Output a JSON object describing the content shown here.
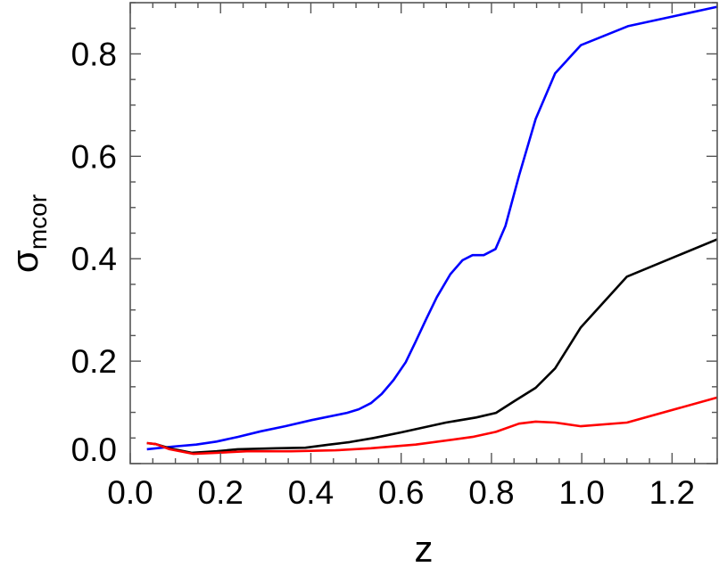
{
  "chart_data": {
    "type": "line",
    "title": "",
    "xlabel": "z",
    "ylabel": "σ",
    "ylabel_subscript": "mcor",
    "xlim": [
      0.0,
      1.3
    ],
    "ylim": [
      0.0,
      0.9
    ],
    "xticks": [
      0.0,
      0.2,
      0.4,
      0.6,
      0.8,
      1.0,
      1.2
    ],
    "xtick_labels": [
      "0.0",
      "0.2",
      "0.4",
      "0.6",
      "0.8",
      "1.0",
      "1.2"
    ],
    "yticks": [
      0.0,
      0.2,
      0.4,
      0.6,
      0.8
    ],
    "ytick_labels": [
      "0.0",
      "0.2",
      "0.4",
      "0.6",
      "0.8"
    ],
    "minor_tick_step": 0.05,
    "grid": false,
    "legend": "none",
    "series": [
      {
        "color": "#0000ff",
        "x": [
          0.037,
          0.093,
          0.146,
          0.191,
          0.238,
          0.289,
          0.343,
          0.402,
          0.48,
          0.506,
          0.533,
          0.557,
          0.583,
          0.61,
          0.632,
          0.656,
          0.679,
          0.709,
          0.736,
          0.758,
          0.783,
          0.809,
          0.831,
          0.861,
          0.898,
          0.941,
          0.998,
          1.102,
          1.3
        ],
        "y": [
          0.028,
          0.033,
          0.037,
          0.043,
          0.052,
          0.063,
          0.073,
          0.085,
          0.099,
          0.106,
          0.118,
          0.136,
          0.163,
          0.198,
          0.238,
          0.283,
          0.325,
          0.37,
          0.397,
          0.407,
          0.407,
          0.419,
          0.464,
          0.562,
          0.673,
          0.762,
          0.817,
          0.854,
          0.892
        ]
      },
      {
        "color": "#000000",
        "x": [
          0.037,
          0.057,
          0.087,
          0.136,
          0.191,
          0.238,
          0.323,
          0.388,
          0.441,
          0.486,
          0.539,
          0.6,
          0.699,
          0.766,
          0.81,
          0.851,
          0.898,
          0.941,
          0.998,
          1.1,
          1.3
        ],
        "y": [
          0.04,
          0.038,
          0.03,
          0.021,
          0.024,
          0.028,
          0.03,
          0.031,
          0.037,
          0.042,
          0.05,
          0.061,
          0.08,
          0.09,
          0.099,
          0.122,
          0.148,
          0.186,
          0.266,
          0.365,
          0.438
        ]
      },
      {
        "color": "#ff0000",
        "x": [
          0.037,
          0.057,
          0.087,
          0.14,
          0.191,
          0.258,
          0.356,
          0.455,
          0.533,
          0.632,
          0.758,
          0.81,
          0.861,
          0.898,
          0.941,
          0.998,
          1.1,
          1.3
        ],
        "y": [
          0.04,
          0.038,
          0.028,
          0.019,
          0.021,
          0.024,
          0.024,
          0.026,
          0.03,
          0.037,
          0.052,
          0.062,
          0.078,
          0.082,
          0.08,
          0.073,
          0.08,
          0.129
        ]
      }
    ]
  }
}
